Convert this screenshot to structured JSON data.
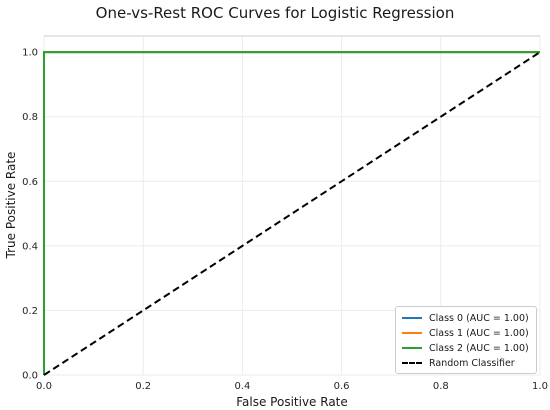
{
  "chart_data": {
    "type": "line",
    "title": "One-vs-Rest ROC Curves for Logistic Regression",
    "xlabel": "False Positive Rate",
    "ylabel": "True Positive Rate",
    "xlim": [
      0.0,
      1.0
    ],
    "ylim": [
      0.0,
      1.05
    ],
    "xticks": [
      "0.0",
      "0.2",
      "0.4",
      "0.6",
      "0.8",
      "1.0"
    ],
    "yticks": [
      "0.0",
      "0.2",
      "0.4",
      "0.6",
      "0.8",
      "1.0"
    ],
    "grid": true,
    "legend_position": "lower right",
    "series": [
      {
        "name": "Class 0 (AUC = 1.00)",
        "color": "#1f77b4",
        "style": "solid",
        "x": [
          0.0,
          0.0,
          1.0
        ],
        "y": [
          0.0,
          1.0,
          1.0
        ]
      },
      {
        "name": "Class 1 (AUC = 1.00)",
        "color": "#ff7f0e",
        "style": "solid",
        "x": [
          0.0,
          0.0,
          1.0
        ],
        "y": [
          0.0,
          1.0,
          1.0
        ]
      },
      {
        "name": "Class 2 (AUC = 1.00)",
        "color": "#2ca02c",
        "style": "solid",
        "x": [
          0.0,
          0.0,
          1.0
        ],
        "y": [
          0.0,
          1.0,
          1.0
        ]
      },
      {
        "name": "Random Classifier",
        "color": "#000000",
        "style": "dashed",
        "x": [
          0.0,
          1.0
        ],
        "y": [
          0.0,
          1.0
        ]
      }
    ]
  }
}
